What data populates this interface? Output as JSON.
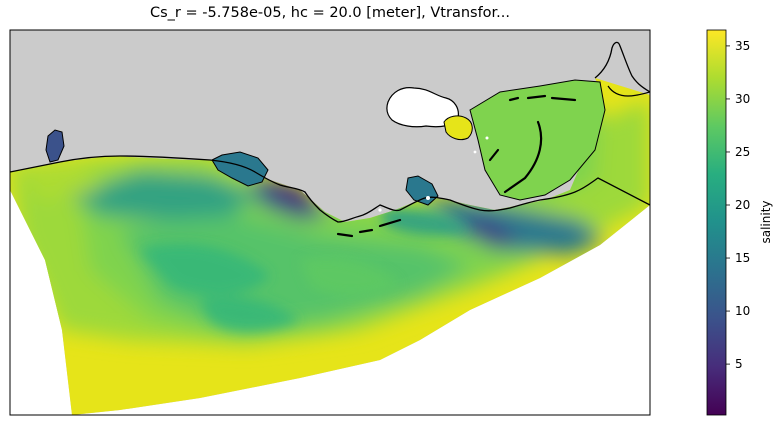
{
  "figure": {
    "title": "Cs_r = -5.758e-05, hc = 20.0 [meter], Vtransfor..."
  },
  "colorbar": {
    "label": "salinity",
    "colormap": "viridis",
    "vmin": 0.2,
    "vmax": 36.5,
    "ticks": [
      {
        "value": 5,
        "label": "5"
      },
      {
        "value": 10,
        "label": "10"
      },
      {
        "value": 15,
        "label": "15"
      },
      {
        "value": 20,
        "label": "20"
      },
      {
        "value": 25,
        "label": "25"
      },
      {
        "value": 30,
        "label": "30"
      },
      {
        "value": 35,
        "label": "35"
      }
    ]
  },
  "map": {
    "land_color": "#cbcbcb",
    "coastline_color": "#000000",
    "ocean_fill_colors": {
      "offshore": "#e6e419",
      "shelf": "#9dd93b",
      "plume": "#35b779",
      "nearshore": "#2a788e",
      "estuary": "#404387",
      "river_mouth": "#46317e"
    }
  }
}
